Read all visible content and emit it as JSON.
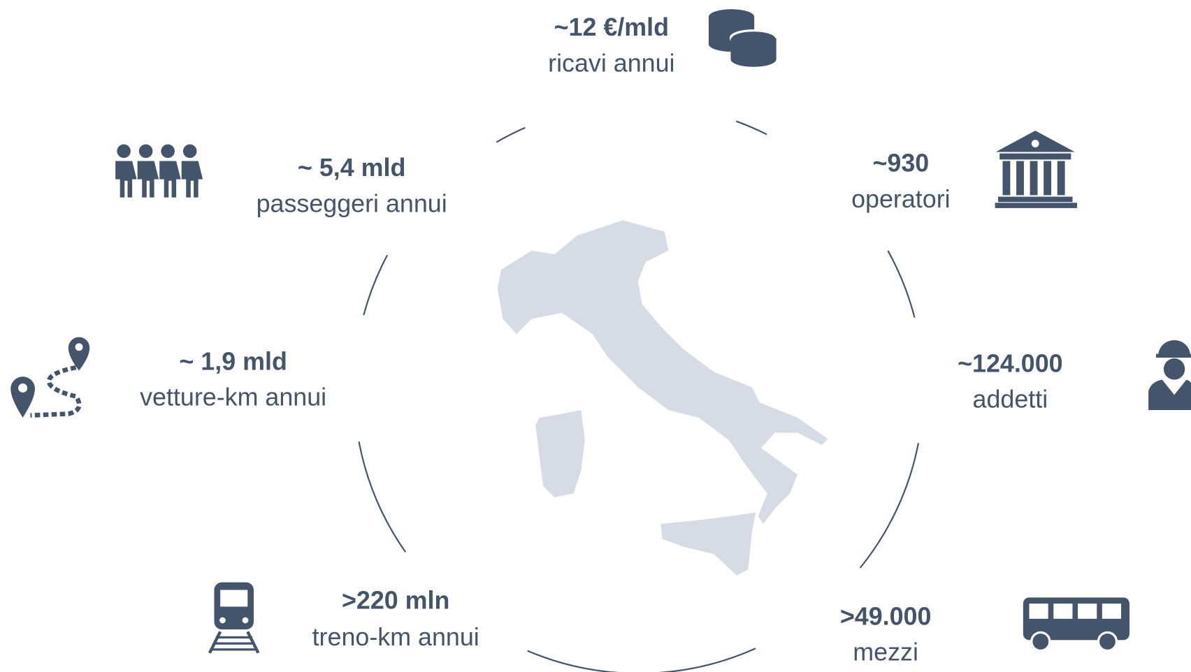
{
  "items": [
    {
      "value": "~12 €/mld",
      "label": "ricavi annui"
    },
    {
      "value": "~930",
      "label": "operatori"
    },
    {
      "value": "~124.000",
      "label": "addetti"
    },
    {
      "value": ">49.000",
      "label": "mezzi"
    },
    {
      "value": ">220 mln",
      "label": "treno-km annui"
    },
    {
      "value": "~ 1,9 mld",
      "label": "vetture-km annui"
    },
    {
      "value": "~ 5,4 mld",
      "label": "passeggeri annui"
    }
  ]
}
